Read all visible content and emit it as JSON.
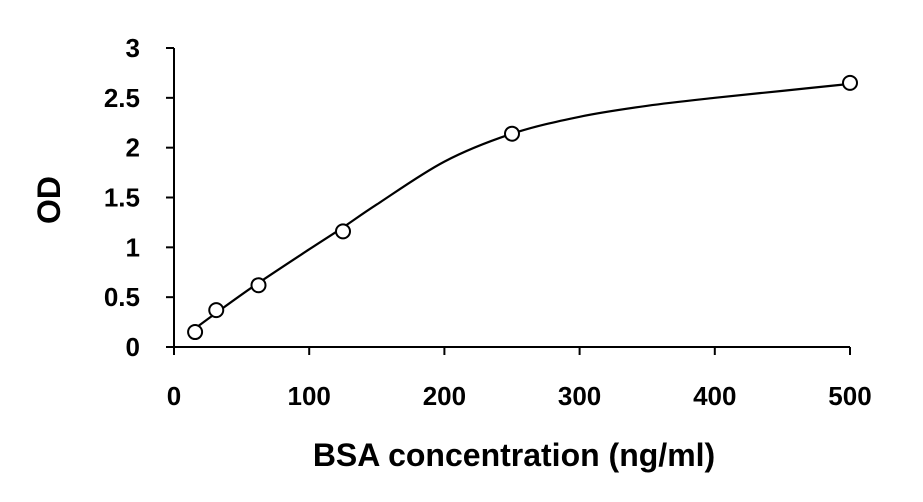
{
  "chart_data": {
    "type": "scatter",
    "title": "",
    "xlabel": "BSA concentration (ng/ml)",
    "ylabel": "OD",
    "xlim": [
      0,
      500
    ],
    "ylim": [
      0,
      3
    ],
    "xticks": [
      0,
      100,
      200,
      300,
      400,
      500
    ],
    "yticks": [
      0,
      0.5,
      1,
      1.5,
      2,
      2.5,
      3
    ],
    "xtick_labels": [
      "0",
      "100",
      "200",
      "300",
      "400",
      "500"
    ],
    "ytick_labels": [
      "0",
      "0.5",
      "1",
      "1.5",
      "2",
      "2.5",
      "3"
    ],
    "grid": false,
    "legend": "none",
    "marker": "open-circle",
    "series": [
      {
        "x": [
          15.6,
          31.25,
          62.5,
          125,
          250,
          500
        ],
        "y": [
          0.15,
          0.37,
          0.62,
          1.16,
          2.14,
          2.65
        ],
        "fit_curve": {
          "x": [
            15,
            30,
            60,
            100,
            125,
            150,
            200,
            250,
            300,
            350,
            400,
            450,
            500
          ],
          "y": [
            0.18,
            0.33,
            0.62,
            0.98,
            1.2,
            1.43,
            1.86,
            2.14,
            2.31,
            2.42,
            2.5,
            2.57,
            2.64
          ]
        }
      }
    ]
  }
}
